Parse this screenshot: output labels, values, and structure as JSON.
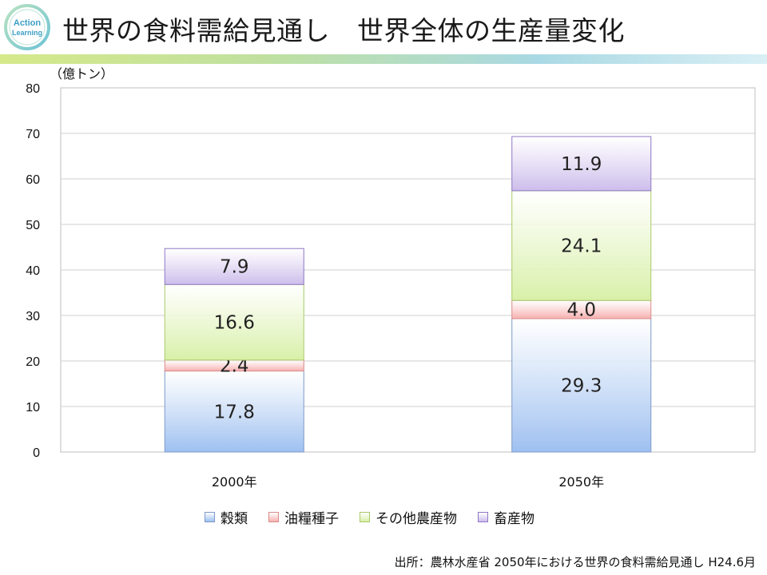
{
  "header": {
    "title_main": "世界の食料需給見通し",
    "title_sub": "世界全体の生産量変化",
    "logo_text_line1": "Action",
    "logo_text_line2": "Learning"
  },
  "source_note": "出所：農林水産省  2050年における世界の食料需給見通し  H24.6月",
  "chart_data": {
    "type": "bar",
    "stacked": true,
    "unit_label": "（億トン）",
    "categories": [
      "2000年",
      "2050年"
    ],
    "series": [
      {
        "name": "穀類",
        "values": [
          17.8,
          29.3
        ],
        "color": "#9ec0f0"
      },
      {
        "name": "油糧種子",
        "values": [
          2.4,
          4.0
        ],
        "color": "#f7b0b0"
      },
      {
        "name": "その他農産物",
        "values": [
          16.6,
          24.1
        ],
        "color": "#d8f0a8"
      },
      {
        "name": "畜産物",
        "values": [
          7.9,
          11.9
        ],
        "color": "#cdbdeb"
      }
    ],
    "y_ticks": [
      "0",
      "10",
      "20",
      "30",
      "40",
      "50",
      "60",
      "70",
      "80"
    ],
    "ylim": [
      0,
      80
    ],
    "grid": true,
    "legend_position": "bottom",
    "title": "",
    "xlabel": "",
    "ylabel": ""
  }
}
